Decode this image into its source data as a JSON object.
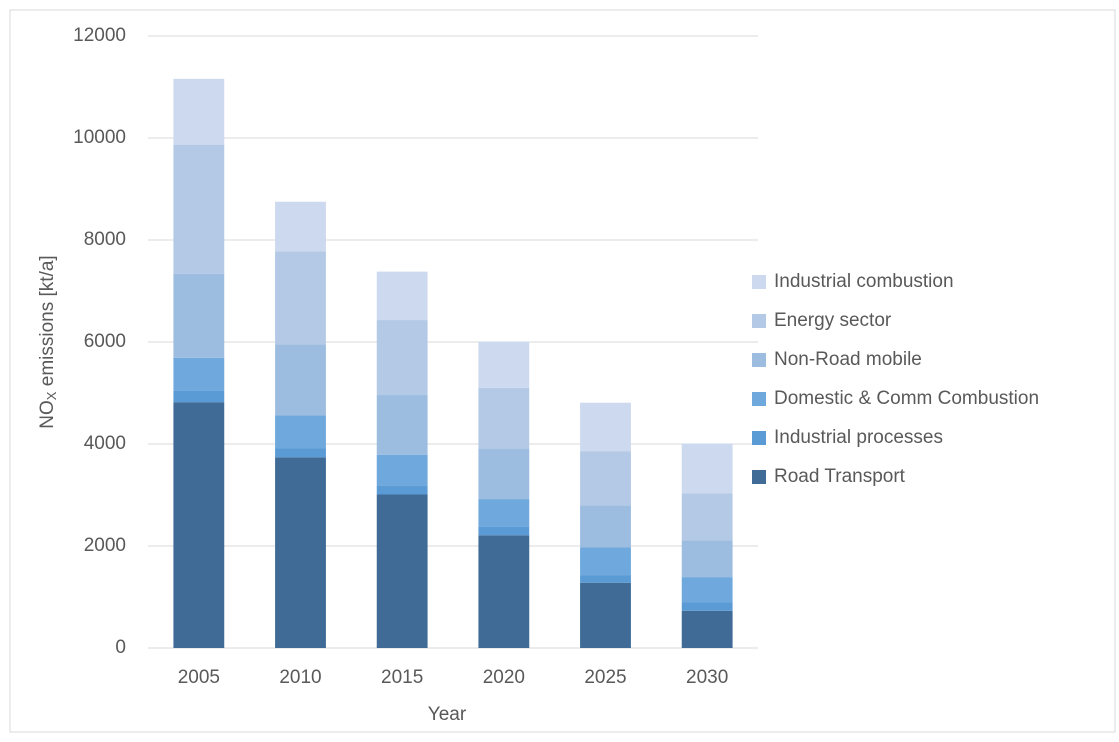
{
  "chart_data": {
    "type": "stacked_bar",
    "x_label": "Year",
    "y_label_parts": [
      "NO",
      "X",
      " emissions [kt/a]"
    ],
    "categories": [
      "2005",
      "2010",
      "2015",
      "2020",
      "2025",
      "2030"
    ],
    "series": [
      {
        "name": "Road Transport",
        "color": "#3f6b96",
        "values": [
          4820,
          3740,
          3010,
          2210,
          1280,
          730
        ]
      },
      {
        "name": "Industrial processes",
        "color": "#5b9bd5",
        "values": [
          220,
          180,
          180,
          170,
          150,
          170
        ]
      },
      {
        "name": "Domestic & Comm Combustion",
        "color": "#6fa8dc",
        "values": [
          650,
          640,
          600,
          540,
          540,
          490
        ]
      },
      {
        "name": "Non-Road mobile",
        "color": "#9dbde0",
        "values": [
          1650,
          1390,
          1170,
          990,
          830,
          720
        ]
      },
      {
        "name": "Energy sector",
        "color": "#b4c9e6",
        "values": [
          2530,
          1830,
          1470,
          1190,
          1060,
          920
        ]
      },
      {
        "name": "Industrial combustion",
        "color": "#cdd9ee",
        "values": [
          1290,
          970,
          950,
          910,
          950,
          980
        ]
      }
    ],
    "ylim": [
      0,
      12000
    ],
    "yticks": [
      0,
      2000,
      4000,
      6000,
      8000,
      10000,
      12000
    ],
    "grid": true,
    "legend": "right"
  }
}
